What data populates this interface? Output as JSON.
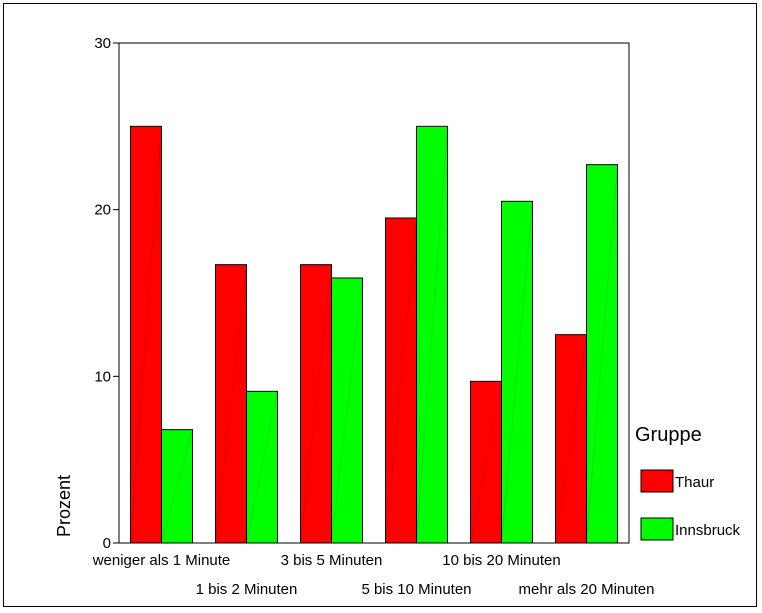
{
  "chart_data": {
    "type": "bar",
    "title": "",
    "xlabel": "",
    "ylabel": "Prozent",
    "ylim": [
      0,
      30
    ],
    "yticks": [
      0,
      10,
      20,
      30
    ],
    "categories": [
      "weniger als 1 Minute",
      "1 bis 2 Minuten",
      "3 bis 5 Minuten",
      "5 bis 10 Minuten",
      "10 bis 20 Minuten",
      "mehr als 20 Minuten"
    ],
    "series": [
      {
        "name": "Thaur",
        "color": "#ff0000",
        "values": [
          25.0,
          16.7,
          16.7,
          19.5,
          9.7,
          12.5
        ]
      },
      {
        "name": "Innsbruck",
        "color": "#00ff00",
        "values": [
          6.8,
          9.1,
          15.9,
          25.0,
          20.5,
          22.7
        ]
      }
    ],
    "legend": {
      "title": "Gruppe",
      "placement": "right"
    },
    "grid": false
  }
}
